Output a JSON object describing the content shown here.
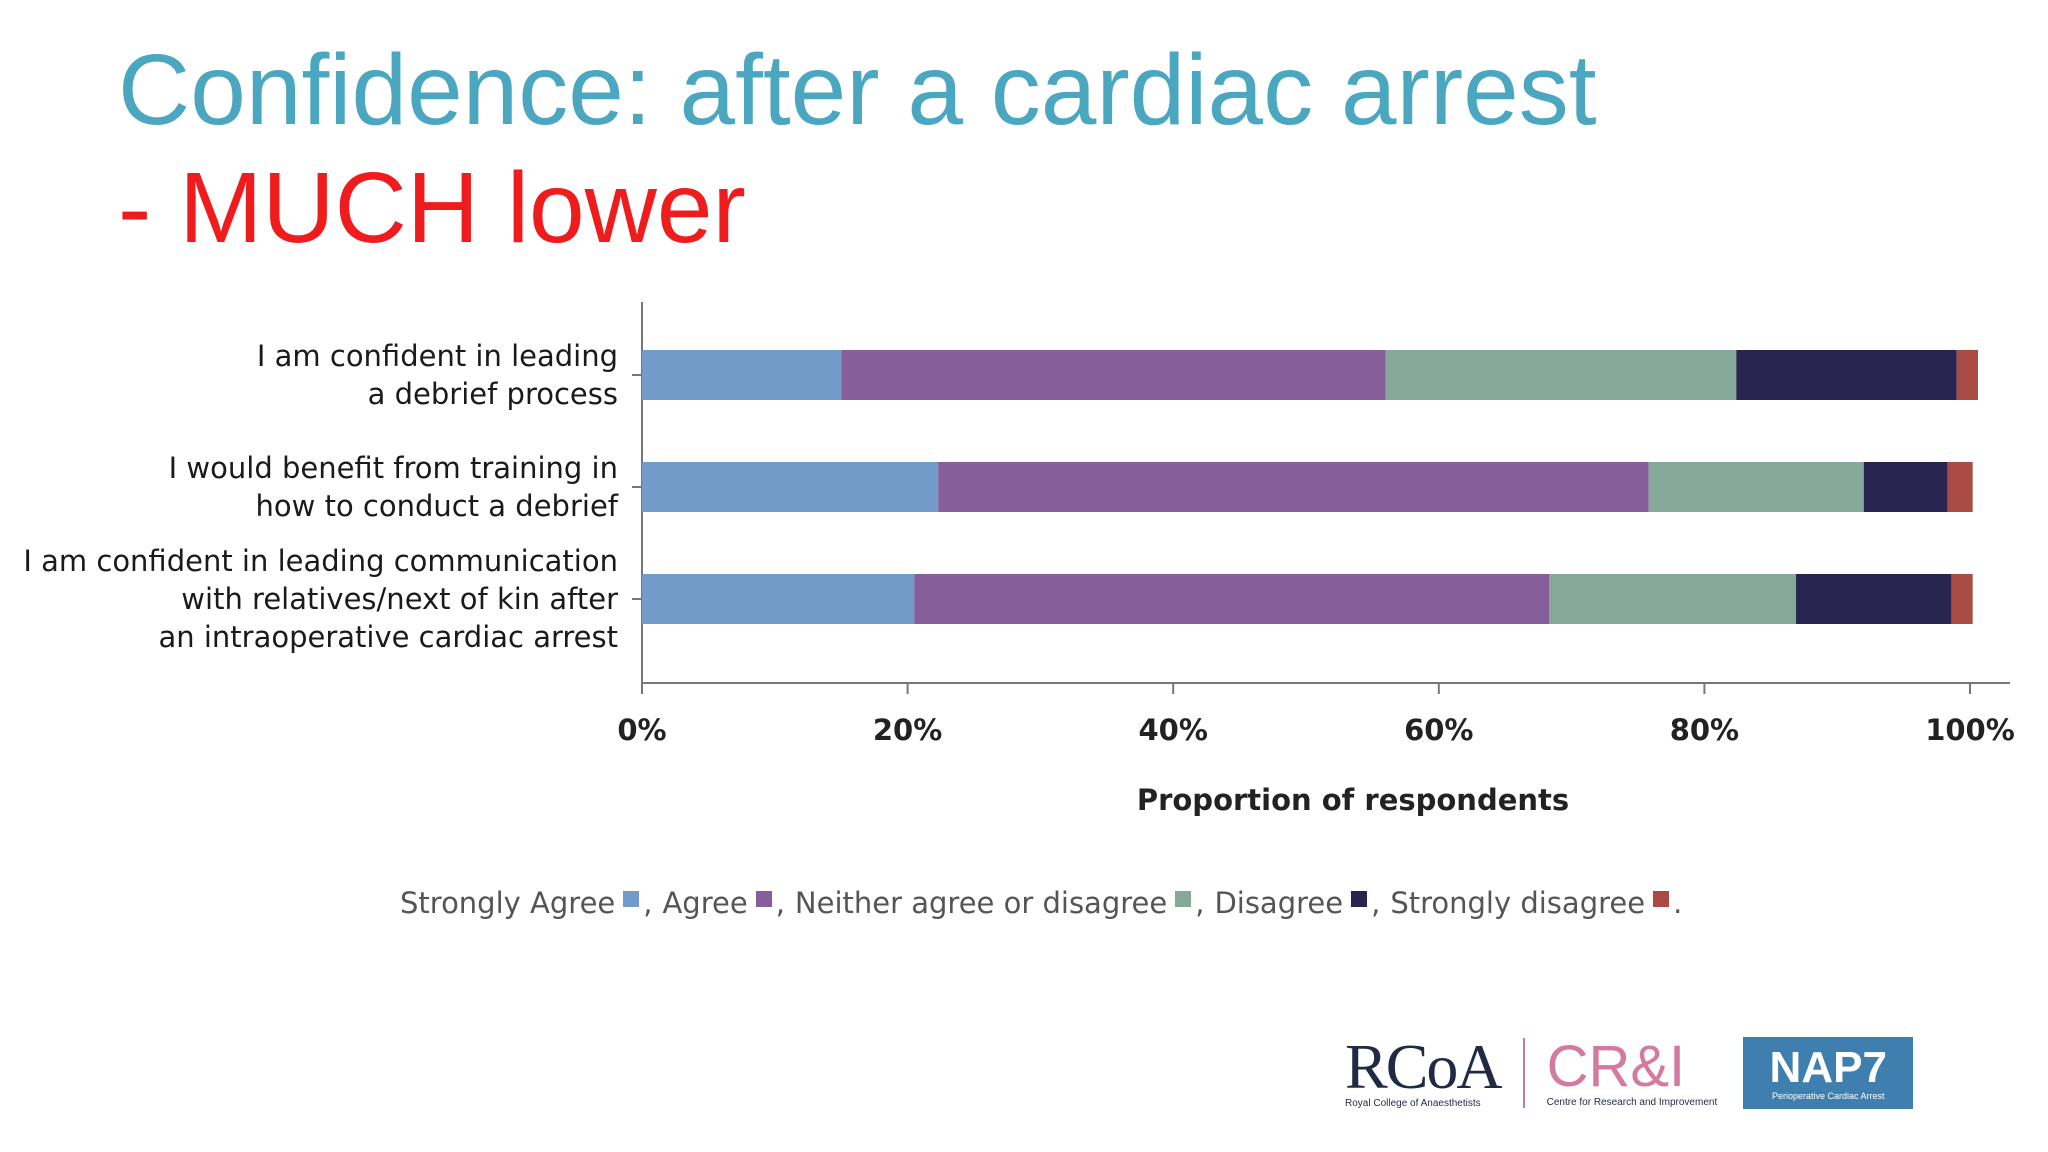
{
  "slide": {
    "title": "Confidence: after a cardiac arrest",
    "subtitle": "- MUCH lower"
  },
  "chart_data": {
    "type": "bar",
    "orientation": "horizontal",
    "stacked": true,
    "categories": [
      "I am confident in leading\na debrief process",
      "I would benefit from training in\nhow to conduct a debrief",
      "I am confident in leading communication\nwith relatives/next of kin after\nan intraoperative cardiac arrest"
    ],
    "series": [
      {
        "name": "Strongly Agree",
        "color": "#729bca",
        "values": [
          15,
          22.3,
          20.5
        ]
      },
      {
        "name": "Agree",
        "color": "#855e9a",
        "values": [
          41,
          53.5,
          47.8
        ]
      },
      {
        "name": "Neither agree or disagree",
        "color": "#86a899",
        "values": [
          26.4,
          16.2,
          18.6
        ]
      },
      {
        "name": "Disagree",
        "color": "#282650",
        "values": [
          16.6,
          6.3,
          11.7
        ]
      },
      {
        "name": "Strongly disagree",
        "color": "#a94b42",
        "values": [
          1.6,
          1.9,
          1.6
        ]
      }
    ],
    "xlabel": "Proportion of respondents",
    "xlim": [
      0,
      100
    ],
    "xticks": [
      "0%",
      "20%",
      "40%",
      "60%",
      "80%",
      "100%"
    ],
    "legend_position": "bottom",
    "legend_end": "."
  },
  "logos": {
    "rcoa": {
      "big": "RCoA",
      "small": "Royal College of Anaesthetists"
    },
    "cri": {
      "big": "CR&I",
      "small": "Centre for Research and Improvement"
    },
    "nap": {
      "big": "NAP7",
      "small": "Perioperative Cardiac Arrest"
    }
  }
}
